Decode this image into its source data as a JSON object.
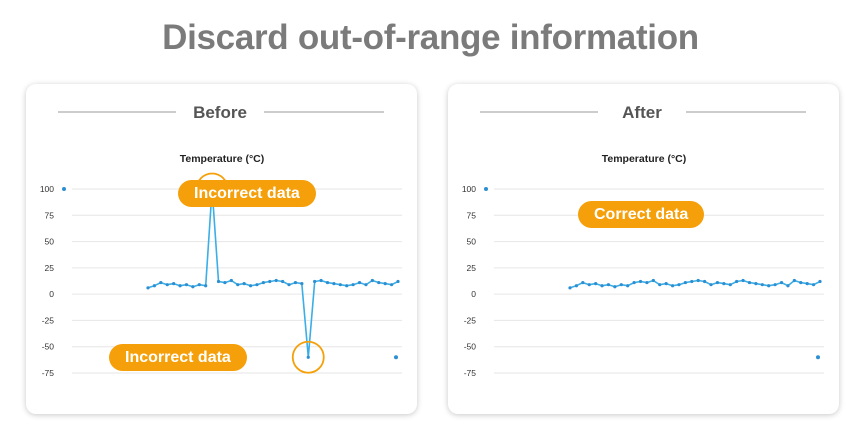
{
  "title": "Discard out-of-range information",
  "colors": {
    "line": "#3aaee6",
    "point": "#2d8fd1",
    "annotation": "#f5a00a",
    "title": "#7b7b7b"
  },
  "chart_data": [
    {
      "type": "line",
      "panel_title": "Before",
      "title": "Temperature (°C)",
      "yticks": [
        100,
        75,
        50,
        25,
        0,
        -25,
        -50,
        -75
      ],
      "ylim": [
        -75,
        100
      ],
      "x": [
        1,
        2,
        3,
        4,
        5,
        6,
        7,
        8,
        9,
        10,
        11,
        12,
        13,
        14,
        15,
        16,
        17,
        18,
        19,
        20,
        21,
        22,
        23,
        24,
        25,
        26,
        27,
        28,
        29,
        30,
        31,
        32,
        33,
        34,
        35,
        36,
        37,
        38,
        39,
        40
      ],
      "values": [
        6,
        8,
        11,
        9,
        10,
        8,
        9,
        7,
        9,
        8,
        100,
        12,
        11,
        13,
        9,
        10,
        8,
        9,
        11,
        12,
        13,
        12,
        9,
        11,
        10,
        -60,
        12,
        13,
        11,
        10,
        9,
        8,
        9,
        11,
        9,
        13,
        11,
        10,
        9,
        12
      ],
      "outliers": [
        {
          "x": 0,
          "y": 100
        },
        {
          "x": 41,
          "y": -60
        }
      ],
      "annotations": [
        {
          "text": "Incorrect data",
          "target_index": 10
        },
        {
          "text": "Incorrect data",
          "target_index": 25
        }
      ],
      "grid": true
    },
    {
      "type": "line",
      "panel_title": "After",
      "title": "Temperature (°C)",
      "yticks": [
        100,
        75,
        50,
        25,
        0,
        -25,
        -50,
        -75
      ],
      "ylim": [
        -75,
        100
      ],
      "x": [
        1,
        2,
        3,
        4,
        5,
        6,
        7,
        8,
        9,
        10,
        11,
        12,
        13,
        14,
        15,
        16,
        17,
        18,
        19,
        20,
        21,
        22,
        23,
        24,
        25,
        26,
        27,
        28,
        29,
        30,
        31,
        32,
        33,
        34,
        35,
        36,
        37,
        38,
        39,
        40
      ],
      "values": [
        6,
        8,
        11,
        9,
        10,
        8,
        9,
        7,
        9,
        8,
        11,
        12,
        11,
        13,
        9,
        10,
        8,
        9,
        11,
        12,
        13,
        12,
        9,
        11,
        10,
        9,
        12,
        13,
        11,
        10,
        9,
        8,
        9,
        11,
        8,
        13,
        11,
        10,
        9,
        12
      ],
      "outliers": [
        {
          "x": 0,
          "y": 100
        },
        {
          "x": 41,
          "y": -60
        }
      ],
      "annotations": [
        {
          "text": "Correct data"
        }
      ],
      "grid": true
    }
  ]
}
